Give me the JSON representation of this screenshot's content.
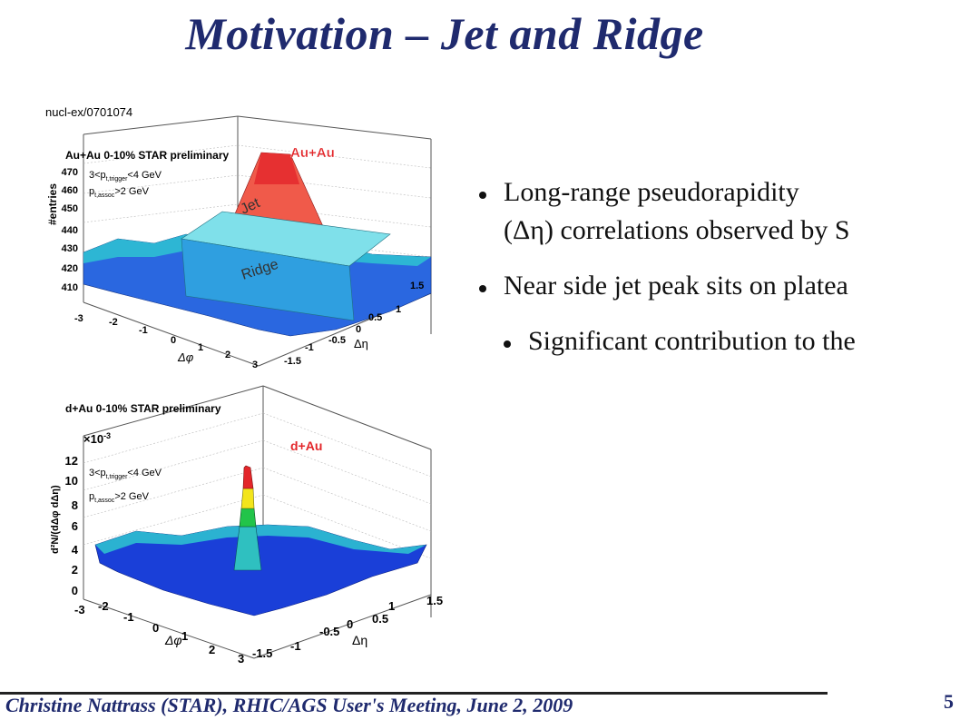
{
  "slide": {
    "title": "Motivation – Jet and Ridge",
    "footer": "Christine Nattrass (STAR), RHIC/AGS User's Meeting, June 2, 2009",
    "page_number": "5"
  },
  "bullets": [
    {
      "level": 1,
      "text": "Long-range pseudorapidity"
    },
    {
      "level": 1,
      "text": "(Δη) correlations observed by S"
    },
    {
      "level": 1,
      "text": "Near side jet peak sits on platea"
    },
    {
      "level": 2,
      "text": "Significant contribution to the"
    }
  ],
  "figure_top": {
    "reference": "nucl-ex/0701074",
    "header": "Au+Au 0-10% STAR preliminary",
    "system_label": "Au+Au",
    "cut_trigger": "3<p",
    "cut_trigger_sub": "t,trigger",
    "cut_trigger_rest": "<4 GeV",
    "cut_assoc": "p",
    "cut_assoc_sub": "t,assoc",
    "cut_assoc_rest": ">2 GeV",
    "zlabel": "#entries",
    "z_ticks": [
      "470",
      "460",
      "450",
      "440",
      "430",
      "420",
      "410"
    ],
    "phi_ticks": [
      "-3",
      "-2",
      "-1",
      "0",
      "1",
      "2",
      "3"
    ],
    "eta_ticks": [
      "-1.5",
      "-1",
      "-0.5",
      "0",
      "0.5",
      "1",
      "1.5"
    ],
    "phi_label": "Δφ",
    "eta_label": "Δη",
    "jet_label": "Jet",
    "ridge_label": "Ridge"
  },
  "figure_bottom": {
    "header": "d+Au 0-10% STAR preliminary",
    "system_label": "d+Au",
    "scale": "×10",
    "scale_exp": "-3",
    "cut_trigger": "3<p",
    "cut_trigger_sub": "t,trigger",
    "cut_trigger_rest": "<4 GeV",
    "cut_assoc": "p",
    "cut_assoc_sub": "t,assoc",
    "cut_assoc_rest": ">2 GeV",
    "zlabel": "d²N/(dΔφ dΔη)",
    "z_ticks": [
      "12",
      "10",
      "8",
      "6",
      "4",
      "2",
      "0"
    ],
    "phi_ticks": [
      "-3",
      "-2",
      "-1",
      "0",
      "1",
      "2",
      "3"
    ],
    "eta_ticks": [
      "-1.5",
      "-1",
      "-0.5",
      "0",
      "0.5",
      "1",
      "1.5"
    ],
    "phi_label": "Δφ",
    "eta_label": "Δη"
  },
  "colors": {
    "title": "#1f2a6e",
    "surface_low": "#1a3fd8",
    "surface_mid": "#2fd0d0",
    "peak": "#e3262a",
    "ridge": "#36c9e0"
  }
}
